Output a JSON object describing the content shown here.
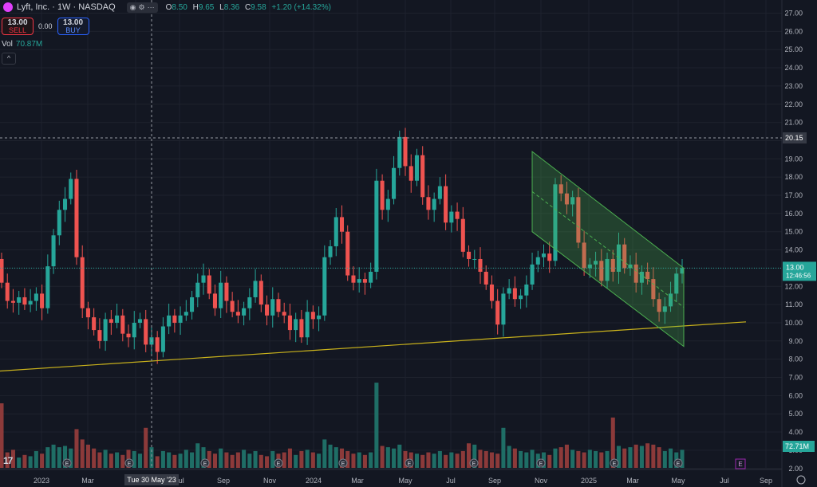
{
  "header": {
    "title": "Lyft, Inc. · 1W · NASDAQ",
    "ohlc": [
      {
        "label": "O",
        "value": "8.50"
      },
      {
        "label": "H",
        "value": "9.65"
      },
      {
        "label": "L",
        "value": "8.36"
      },
      {
        "label": "C",
        "value": "9.58"
      }
    ],
    "change": "+1.20 (+14.32%)"
  },
  "trade": {
    "sell_price": "13.00",
    "sell_label": "SELL",
    "spread": "0.00",
    "buy_price": "13.00",
    "buy_label": "BUY"
  },
  "volume_legend": {
    "label": "Vol",
    "value": "70.87M"
  },
  "crosshair": {
    "x_label": "Tue 30 May '23",
    "y_label": "20.15"
  },
  "last_price": {
    "value": "13.00",
    "countdown": "12:46:56"
  },
  "volume_badge": "72.71M",
  "colors": {
    "up": "#26a69a",
    "down": "#ef5350",
    "bg": "#131722",
    "trend": "#c9b21c",
    "channel": "#4caf50"
  },
  "chart_data": {
    "type": "candlestick",
    "price_axis": {
      "ticks": [
        "27.00",
        "26.00",
        "25.00",
        "24.00",
        "23.00",
        "22.00",
        "21.00",
        "20.00",
        "19.00",
        "18.00",
        "17.00",
        "16.00",
        "15.00",
        "14.00",
        "13.00",
        "12.00",
        "11.00",
        "10.00",
        "9.00",
        "8.00",
        "7.00",
        "6.00",
        "5.00",
        "4.00",
        "3.00",
        "2.00"
      ]
    },
    "time_axis": {
      "labels": [
        "2023",
        "Mar",
        "May",
        "Jul",
        "Sep",
        "Nov",
        "2024",
        "Mar",
        "May",
        "Jul",
        "Sep",
        "Nov",
        "2025",
        "Mar",
        "May",
        "Jul",
        "Sep"
      ]
    },
    "close_series": [
      12.2,
      11.2,
      11.1,
      11.4,
      11.0,
      11.2,
      11.6,
      10.8,
      13.1,
      14.8,
      16.2,
      16.8,
      17.9,
      13.6,
      10.8,
      10.3,
      9.6,
      9.0,
      10.2,
      10.0,
      10.4,
      9.4,
      9.2,
      10.0,
      10.2,
      8.8,
      9.2,
      8.4,
      9.8,
      10.4,
      10.0,
      10.4,
      10.6,
      11.4,
      12.2,
      12.6,
      11.6,
      10.8,
      12.2,
      11.2,
      10.6,
      10.4,
      10.8,
      11.4,
      12.3,
      11.0,
      10.4,
      11.3,
      10.6,
      10.4,
      9.6,
      10.2,
      9.2,
      10.6,
      10.2,
      10.4,
      13.6,
      14.2,
      15.8,
      15.0,
      12.6,
      12.2,
      12.4,
      12.2,
      12.8,
      17.8,
      16.2,
      16.8,
      18.5,
      20.2,
      18.6,
      17.8,
      19.2,
      16.9,
      16.2,
      16.8,
      17.5,
      15.5,
      16.1,
      15.7,
      13.9,
      13.5,
      13.5,
      12.8,
      12.1,
      11.2,
      9.9,
      11.6,
      11.9,
      11.3,
      11.5,
      12.1,
      13.2,
      13.6,
      13.8,
      13.4,
      17.6,
      17.1,
      16.5,
      16.9,
      14.4,
      13.0,
      13.2,
      13.4,
      12.3,
      13.5,
      12.8,
      14.3,
      13.0,
      13.2,
      12.2,
      12.8,
      12.4,
      11.3,
      10.6,
      10.9,
      11.6,
      12.7,
      13.0
    ],
    "trendline": {
      "start": {
        "date": "2022-11",
        "price": 7.35
      },
      "end": {
        "date": "2025-08",
        "price": 10.05
      }
    },
    "channel": {
      "start": "2024-10",
      "end": "2025-04",
      "upper": [
        19.4,
        13.0
      ],
      "lower": [
        15.0,
        8.7
      ]
    },
    "volume_series": [
      5.0,
      1.2,
      1.4,
      0.8,
      1.0,
      0.9,
      1.3,
      1.1,
      1.6,
      1.8,
      1.6,
      1.7,
      1.5,
      3.0,
      2.2,
      1.8,
      1.5,
      1.2,
      1.4,
      1.1,
      1.2,
      1.0,
      1.4,
      1.3,
      1.1,
      3.1,
      1.6,
      0.9,
      1.3,
      1.2,
      1.0,
      1.1,
      1.4,
      1.2,
      1.9,
      1.6,
      1.3,
      1.1,
      1.5,
      1.2,
      1.0,
      1.2,
      1.4,
      1.1,
      1.3,
      1.0,
      0.9,
      1.3,
      1.1,
      1.2,
      1.5,
      1.0,
      1.3,
      1.4,
      1.2,
      1.1,
      2.2,
      1.8,
      1.6,
      1.5,
      1.3,
      1.1,
      1.2,
      1.0,
      1.2,
      6.6,
      1.7,
      1.6,
      1.5,
      1.8,
      1.3,
      1.2,
      1.1,
      1.0,
      1.2,
      1.1,
      1.3,
      1.0,
      1.2,
      1.1,
      1.3,
      1.9,
      1.8,
      1.4,
      1.3,
      1.2,
      1.1,
      3.1,
      1.7,
      1.5,
      1.3,
      1.2,
      1.4,
      1.1,
      1.2,
      1.0,
      1.5,
      1.6,
      1.8,
      1.4,
      1.3,
      1.2,
      1.4,
      1.3,
      1.2,
      1.3,
      3.9,
      1.7,
      1.5,
      1.6,
      1.8,
      1.7,
      1.9,
      1.8,
      1.6,
      1.3,
      1.5,
      1.2,
      1.4
    ]
  }
}
